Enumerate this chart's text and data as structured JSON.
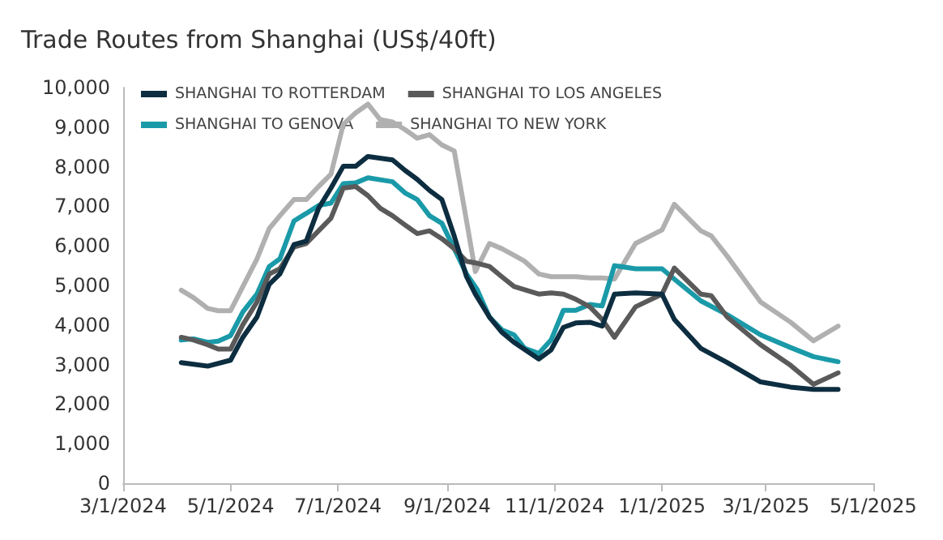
{
  "chart_data": {
    "type": "line",
    "title": "Trade Routes from Shanghai (US$/40ft)",
    "legend": "top",
    "grid": false,
    "marker": "none",
    "line_style": "solid",
    "xlim": [
      "2024-03-01",
      "2025-05-01"
    ],
    "xticks": [
      {
        "value": "2024-03-01",
        "label": "3/1/2024"
      },
      {
        "value": "2024-05-01",
        "label": "5/1/2024"
      },
      {
        "value": "2024-07-01",
        "label": "7/1/2024"
      },
      {
        "value": "2024-09-01",
        "label": "9/1/2024"
      },
      {
        "value": "2024-11-01",
        "label": "11/1/2024"
      },
      {
        "value": "2025-01-01",
        "label": "1/1/2025"
      },
      {
        "value": "2025-03-01",
        "label": "3/1/2025"
      },
      {
        "value": "2025-05-01",
        "label": "5/1/2025"
      }
    ],
    "ylim": [
      0,
      10000
    ],
    "yticks": [
      {
        "value": 0,
        "label": "0"
      },
      {
        "value": 1000,
        "label": "1,000"
      },
      {
        "value": 2000,
        "label": "2,000"
      },
      {
        "value": 3000,
        "label": "3,000"
      },
      {
        "value": 4000,
        "label": "4,000"
      },
      {
        "value": 5000,
        "label": "5,000"
      },
      {
        "value": 6000,
        "label": "6,000"
      },
      {
        "value": 7000,
        "label": "7,000"
      },
      {
        "value": 8000,
        "label": "8,000"
      },
      {
        "value": 9000,
        "label": "9,000"
      },
      {
        "value": 10000,
        "label": "10,000"
      }
    ],
    "series": [
      {
        "name": "SHANGHAI TO ROTTERDAM",
        "color": "#0d2d40",
        "x": [
          "2024-04-03",
          "2024-04-18",
          "2024-05-01",
          "2024-05-08",
          "2024-05-16",
          "2024-05-23",
          "2024-05-29",
          "2024-06-06",
          "2024-06-13",
          "2024-06-20",
          "2024-06-27",
          "2024-07-04",
          "2024-07-11",
          "2024-07-18",
          "2024-08-01",
          "2024-08-08",
          "2024-08-15",
          "2024-08-22",
          "2024-08-29",
          "2024-09-05",
          "2024-09-12",
          "2024-09-17",
          "2024-09-25",
          "2024-10-02",
          "2024-10-09",
          "2024-10-23",
          "2024-10-30",
          "2024-11-06",
          "2024-11-13",
          "2024-11-21",
          "2024-11-28",
          "2024-12-05",
          "2024-12-17",
          "2025-01-01",
          "2025-01-08",
          "2025-01-23",
          "2025-02-07",
          "2025-02-26",
          "2025-03-15",
          "2025-03-28",
          "2025-04-11"
        ],
        "values": [
          3050,
          2960,
          3110,
          3690,
          4200,
          5030,
          5290,
          6030,
          6120,
          6950,
          7460,
          8010,
          8010,
          8260,
          8170,
          7910,
          7680,
          7400,
          7170,
          6250,
          5220,
          4780,
          4200,
          3820,
          3560,
          3140,
          3370,
          3940,
          4050,
          4070,
          3970,
          4780,
          4810,
          4780,
          4140,
          3410,
          3050,
          2560,
          2430,
          2370,
          2370
        ]
      },
      {
        "name": "SHANGHAI TO LOS ANGELES",
        "color": "#5a5a5a",
        "x": [
          "2024-04-03",
          "2024-04-10",
          "2024-04-18",
          "2024-04-24",
          "2024-05-01",
          "2024-05-08",
          "2024-05-16",
          "2024-05-23",
          "2024-05-29",
          "2024-06-06",
          "2024-06-13",
          "2024-06-20",
          "2024-06-27",
          "2024-07-04",
          "2024-07-11",
          "2024-07-18",
          "2024-07-25",
          "2024-08-01",
          "2024-08-08",
          "2024-08-15",
          "2024-08-22",
          "2024-08-29",
          "2024-09-05",
          "2024-09-12",
          "2024-09-17",
          "2024-09-25",
          "2024-10-02",
          "2024-10-09",
          "2024-10-23",
          "2024-10-30",
          "2024-11-06",
          "2024-11-13",
          "2024-11-21",
          "2024-11-28",
          "2024-12-05",
          "2024-12-17",
          "2025-01-01",
          "2025-01-08",
          "2025-01-23",
          "2025-01-29",
          "2025-02-07",
          "2025-02-26",
          "2025-03-15",
          "2025-03-28",
          "2025-04-11"
        ],
        "values": [
          3690,
          3620,
          3500,
          3390,
          3390,
          4010,
          4580,
          5290,
          5420,
          5970,
          6060,
          6380,
          6700,
          7460,
          7500,
          7270,
          6950,
          6760,
          6530,
          6310,
          6380,
          6180,
          5930,
          5610,
          5570,
          5480,
          5220,
          4970,
          4780,
          4810,
          4780,
          4650,
          4460,
          4140,
          3690,
          4460,
          4780,
          5440,
          4780,
          4740,
          4200,
          3500,
          2980,
          2500,
          2790
        ]
      },
      {
        "name": "SHANGHAI TO GENOVA",
        "color": "#1a9aa8",
        "x": [
          "2024-04-03",
          "2024-04-10",
          "2024-04-18",
          "2024-04-24",
          "2024-05-01",
          "2024-05-08",
          "2024-05-16",
          "2024-05-23",
          "2024-05-29",
          "2024-06-06",
          "2024-06-13",
          "2024-06-20",
          "2024-06-27",
          "2024-07-04",
          "2024-07-11",
          "2024-07-18",
          "2024-08-01",
          "2024-08-08",
          "2024-08-15",
          "2024-08-22",
          "2024-08-29",
          "2024-09-05",
          "2024-09-12",
          "2024-09-18",
          "2024-09-25",
          "2024-10-02",
          "2024-10-09",
          "2024-10-15",
          "2024-10-23",
          "2024-10-30",
          "2024-11-06",
          "2024-11-13",
          "2024-11-21",
          "2024-11-28",
          "2024-12-05",
          "2024-12-17",
          "2025-01-01",
          "2025-01-08",
          "2025-01-23",
          "2025-02-07",
          "2025-02-26",
          "2025-03-15",
          "2025-03-28",
          "2025-04-11"
        ],
        "values": [
          3620,
          3650,
          3560,
          3590,
          3730,
          4330,
          4780,
          5480,
          5670,
          6630,
          6820,
          7020,
          7080,
          7570,
          7590,
          7720,
          7620,
          7340,
          7170,
          6760,
          6570,
          5930,
          5290,
          4900,
          4200,
          3880,
          3750,
          3410,
          3280,
          3620,
          4370,
          4370,
          4520,
          4480,
          5500,
          5420,
          5420,
          5160,
          4610,
          4260,
          3750,
          3430,
          3200,
          3070
        ]
      },
      {
        "name": "SHANGHAI TO NEW YORK",
        "color": "#b0b0b0",
        "x": [
          "2024-04-03",
          "2024-04-10",
          "2024-04-18",
          "2024-04-24",
          "2024-05-01",
          "2024-05-08",
          "2024-05-16",
          "2024-05-23",
          "2024-05-29",
          "2024-06-06",
          "2024-06-13",
          "2024-06-20",
          "2024-06-27",
          "2024-07-04",
          "2024-07-11",
          "2024-07-18",
          "2024-07-25",
          "2024-08-01",
          "2024-08-08",
          "2024-08-15",
          "2024-08-22",
          "2024-08-29",
          "2024-09-05",
          "2024-09-12",
          "2024-09-17",
          "2024-09-25",
          "2024-10-02",
          "2024-10-09",
          "2024-10-15",
          "2024-10-23",
          "2024-10-30",
          "2024-11-13",
          "2024-11-21",
          "2024-11-28",
          "2024-12-05",
          "2024-12-17",
          "2025-01-01",
          "2025-01-08",
          "2025-01-23",
          "2025-01-29",
          "2025-02-07",
          "2025-02-26",
          "2025-03-15",
          "2025-03-28",
          "2025-04-11"
        ],
        "values": [
          4880,
          4690,
          4420,
          4360,
          4360,
          4970,
          5670,
          6440,
          6760,
          7170,
          7170,
          7500,
          7810,
          9070,
          9360,
          9580,
          9190,
          9130,
          8940,
          8720,
          8810,
          8550,
          8400,
          6630,
          5350,
          6060,
          5930,
          5760,
          5610,
          5290,
          5220,
          5220,
          5190,
          5190,
          5160,
          6060,
          6400,
          7050,
          6380,
          6250,
          5740,
          4580,
          4070,
          3600,
          3970
        ]
      }
    ]
  }
}
